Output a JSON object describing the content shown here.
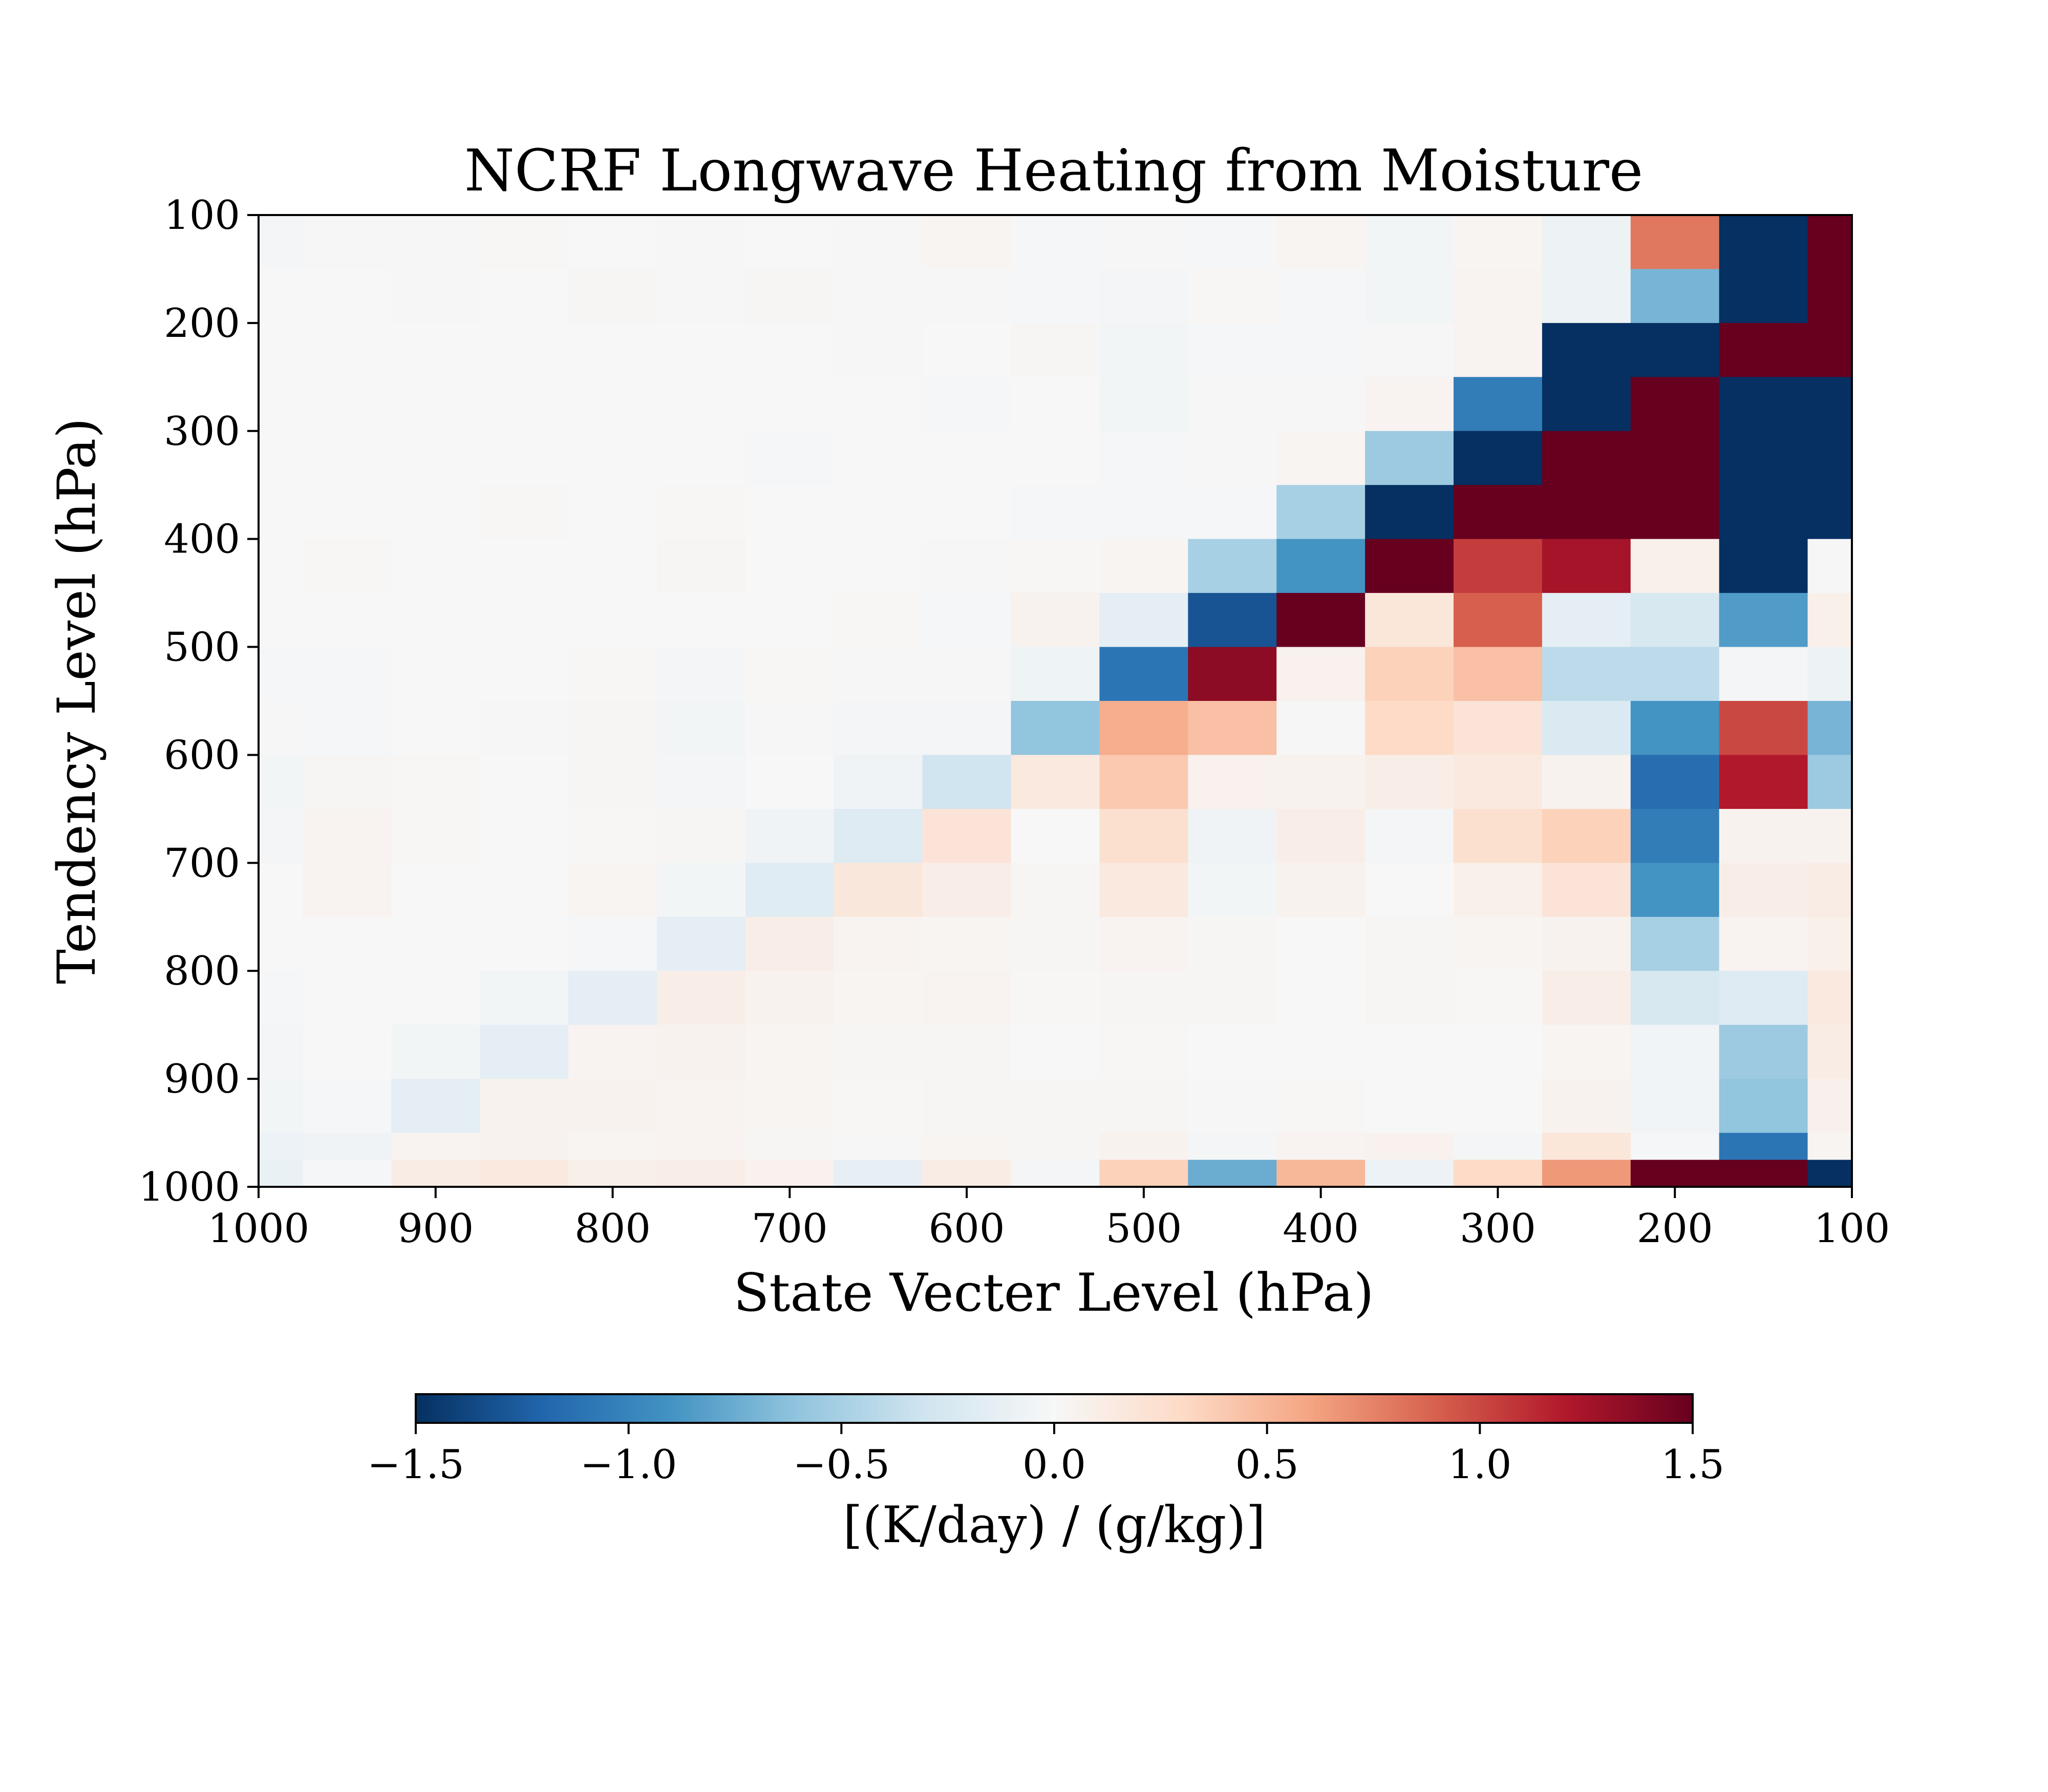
{
  "chart_data": {
    "type": "heatmap",
    "title": "NCRF Longwave Heating from Moisture",
    "xlabel": "State Vecter Level (hPa)",
    "ylabel": "Tendency Level (hPa)",
    "x_axis": {
      "range": [
        1000,
        100
      ],
      "reversed": true,
      "ticks": [
        1000,
        900,
        800,
        700,
        600,
        500,
        400,
        300,
        200,
        100
      ],
      "tick_labels": [
        "1000",
        "900",
        "800",
        "700",
        "600",
        "500",
        "400",
        "300",
        "200",
        "100"
      ]
    },
    "y_axis": {
      "range": [
        1000,
        100
      ],
      "reversed_top_is": 100,
      "ticks": [
        100,
        200,
        300,
        400,
        500,
        600,
        700,
        800,
        900,
        1000
      ],
      "tick_labels": [
        "100",
        "200",
        "300",
        "400",
        "500",
        "600",
        "700",
        "800",
        "900",
        "1000"
      ]
    },
    "x_edges": [
      1000,
      975,
      925,
      875,
      825,
      775,
      725,
      675,
      625,
      575,
      525,
      475,
      425,
      375,
      325,
      275,
      225,
      175,
      125,
      100
    ],
    "y_edges": [
      100,
      150,
      200,
      250,
      300,
      350,
      400,
      450,
      500,
      550,
      600,
      650,
      700,
      750,
      800,
      850,
      900,
      950,
      975,
      1000
    ],
    "z": [
      [
        -0.03,
        -0.01,
        -0.01,
        0.01,
        0,
        -0.01,
        0,
        -0.01,
        0.03,
        -0.02,
        -0.01,
        -0.02,
        0.03,
        -0.04,
        0.03,
        -0.08,
        0.8,
        -1.5,
        1.5
      ],
      [
        0,
        0,
        -0.01,
        0,
        0.02,
        -0.01,
        0.02,
        -0.01,
        -0.01,
        -0.02,
        -0.03,
        0.01,
        -0.02,
        -0.04,
        0.04,
        -0.08,
        -0.7,
        -1.5,
        1.5
      ],
      [
        0,
        0,
        0,
        0,
        0,
        0,
        0,
        -0.01,
        0,
        0.02,
        -0.04,
        -0.02,
        -0.02,
        -0.01,
        0.04,
        -1.5,
        -1.5,
        1.5,
        1.5
      ],
      [
        0,
        0,
        0,
        0,
        0,
        0,
        0,
        0,
        -0.02,
        0,
        -0.04,
        -0.01,
        -0.01,
        0.04,
        -1.05,
        -1.5,
        1.5,
        -1.5,
        -1.5
      ],
      [
        0,
        0,
        0,
        0,
        0,
        0,
        -0.02,
        0,
        0,
        0,
        -0.02,
        -0.01,
        0.03,
        -0.55,
        -1.5,
        1.5,
        1.5,
        -1.5,
        -1.5
      ],
      [
        0,
        0,
        0,
        0.01,
        0,
        0.01,
        0,
        0,
        0,
        -0.02,
        -0.02,
        -0.02,
        -0.5,
        -1.5,
        1.5,
        1.5,
        1.5,
        -1.5,
        -1.5
      ],
      [
        0,
        0.01,
        0,
        0,
        0,
        0.02,
        0,
        0,
        -0.01,
        0.01,
        0.03,
        -0.5,
        -0.9,
        1.5,
        1.05,
        1.25,
        0.08,
        -1.5,
        -0.01
      ],
      [
        0,
        0,
        0,
        0,
        0,
        0,
        0,
        0.01,
        -0.02,
        0.05,
        -0.15,
        -1.3,
        1.5,
        0.18,
        0.9,
        -0.15,
        -0.25,
        -0.85,
        0.08
      ],
      [
        -0.02,
        -0.02,
        0,
        0,
        0.01,
        -0.03,
        0.01,
        -0.01,
        -0.01,
        -0.07,
        -1.1,
        1.35,
        0.06,
        0.35,
        0.45,
        -0.4,
        -0.4,
        -0.03,
        -0.08
      ],
      [
        -0.01,
        -0.02,
        0,
        -0.01,
        0.02,
        -0.04,
        -0.01,
        -0.03,
        -0.03,
        -0.6,
        0.55,
        0.45,
        -0.01,
        0.3,
        0.2,
        -0.22,
        -0.9,
        1.0,
        -0.7
      ],
      [
        -0.04,
        0.02,
        0.01,
        0,
        0.02,
        -0.03,
        0,
        -0.06,
        -0.3,
        0.15,
        0.4,
        0.06,
        0.05,
        0.1,
        0.15,
        0.05,
        -1.15,
        1.2,
        -0.55
      ],
      [
        -0.03,
        0.04,
        0.01,
        0,
        0.01,
        0.02,
        -0.06,
        -0.2,
        0.2,
        0,
        0.25,
        -0.06,
        0.1,
        -0.03,
        0.25,
        0.35,
        -1.05,
        0.05,
        0.05
      ],
      [
        0,
        0.04,
        0,
        0,
        0.03,
        -0.04,
        -0.18,
        0.17,
        0.1,
        0.02,
        0.15,
        -0.04,
        0.05,
        0,
        0.08,
        0.2,
        -0.9,
        0.1,
        0.12
      ],
      [
        0,
        0,
        0,
        0,
        -0.02,
        -0.15,
        0.1,
        0.04,
        0.03,
        0.02,
        0.04,
        0.02,
        0,
        0.02,
        0.03,
        0.05,
        -0.5,
        0.04,
        0.08
      ],
      [
        -0.02,
        0,
        0,
        -0.04,
        -0.15,
        0.1,
        0.05,
        0.03,
        0.04,
        0.01,
        0.02,
        0.02,
        0,
        0.02,
        0.01,
        0.1,
        -0.25,
        -0.2,
        0.15
      ],
      [
        -0.03,
        0,
        -0.04,
        -0.15,
        0.04,
        0.05,
        0.03,
        0.02,
        0.02,
        0,
        0.01,
        0,
        0,
        0,
        0,
        0.03,
        -0.05,
        -0.55,
        0.12
      ],
      [
        -0.04,
        -0.02,
        -0.15,
        0.05,
        0.05,
        0.04,
        0.03,
        0.01,
        0.02,
        0.02,
        0.02,
        -0.01,
        0.01,
        0,
        0,
        0.05,
        -0.05,
        -0.6,
        0.07
      ],
      [
        -0.09,
        -0.06,
        0.04,
        0.05,
        0.03,
        0.04,
        0.02,
        -0.01,
        0.03,
        0.02,
        0.05,
        -0.03,
        0.04,
        0.06,
        -0.03,
        0.18,
        -0.02,
        -1.1,
        0.03
      ],
      [
        -0.1,
        -0.02,
        0.12,
        0.15,
        0.09,
        0.1,
        0.06,
        -0.13,
        0.12,
        -0.03,
        0.35,
        -0.75,
        0.5,
        -0.09,
        0.3,
        0.65,
        1.5,
        1.5,
        -1.5
      ]
    ],
    "colorbar": {
      "colormap": "RdBu_r",
      "vmin": -1.5,
      "vmax": 1.5,
      "ticks": [
        -1.5,
        -1.0,
        -0.5,
        0.0,
        0.5,
        1.0,
        1.5
      ],
      "tick_labels": [
        "−1.5",
        "−1.0",
        "−0.5",
        "0.0",
        "0.5",
        "1.0",
        "1.5"
      ],
      "label": "[(K/day) / (g/kg)]",
      "orientation": "horizontal"
    }
  }
}
